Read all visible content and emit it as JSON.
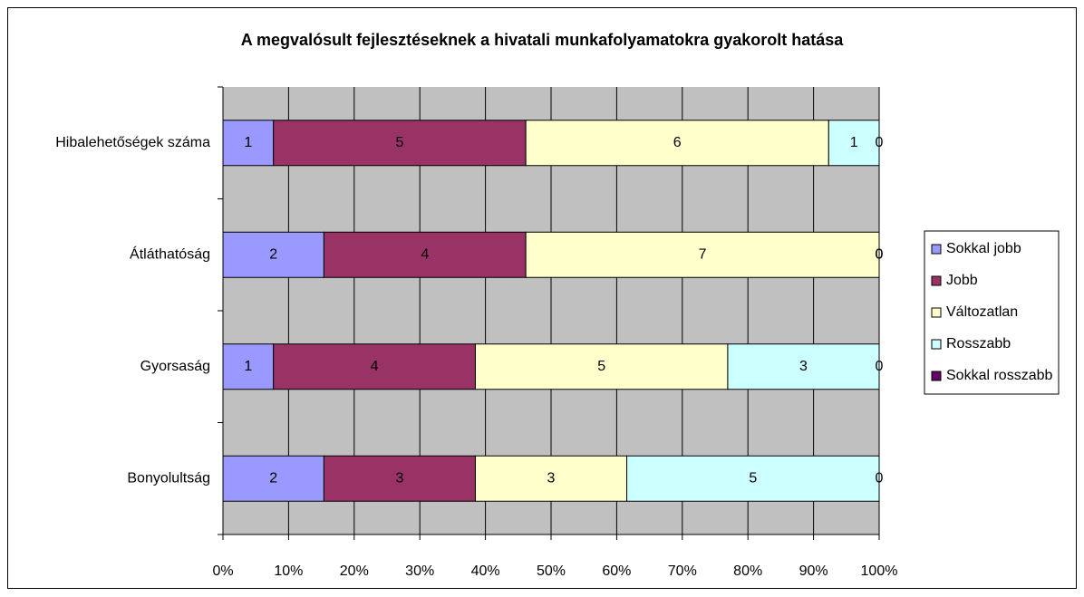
{
  "chart_data": {
    "type": "bar",
    "orientation": "horizontal",
    "stacking": "percent",
    "title": "A megvalósult fejlesztéseknek a hivatali munkafolyamatokra gyakorolt hatása",
    "categories": [
      "Hibalehetőségek száma",
      "Átláthatóság",
      "Gyorsaság",
      "Bonyolultság"
    ],
    "series": [
      {
        "name": "Sokkal jobb",
        "color": "#9999ff",
        "values": [
          1,
          2,
          1,
          2
        ]
      },
      {
        "name": "Jobb",
        "color": "#993366",
        "values": [
          5,
          4,
          4,
          3
        ]
      },
      {
        "name": "Változatlan",
        "color": "#ffffcc",
        "values": [
          6,
          7,
          5,
          3
        ]
      },
      {
        "name": "Rosszabb",
        "color": "#ccffff",
        "values": [
          1,
          0,
          3,
          5
        ]
      },
      {
        "name": "Sokkal rosszabb",
        "color": "#660066",
        "values": [
          0,
          0,
          0,
          0
        ]
      }
    ],
    "xlim": [
      0,
      100
    ],
    "xticks": [
      {
        "value": 0,
        "label": "0%"
      },
      {
        "value": 10,
        "label": "10%"
      },
      {
        "value": 20,
        "label": "20%"
      },
      {
        "value": 30,
        "label": "30%"
      },
      {
        "value": 40,
        "label": "40%"
      },
      {
        "value": 50,
        "label": "50%"
      },
      {
        "value": 60,
        "label": "60%"
      },
      {
        "value": 70,
        "label": "70%"
      },
      {
        "value": 80,
        "label": "80%"
      },
      {
        "value": 90,
        "label": "90%"
      },
      {
        "value": 100,
        "label": "100%"
      }
    ],
    "grid": true,
    "legend": "right",
    "plot_background": "#c0c0c0"
  }
}
